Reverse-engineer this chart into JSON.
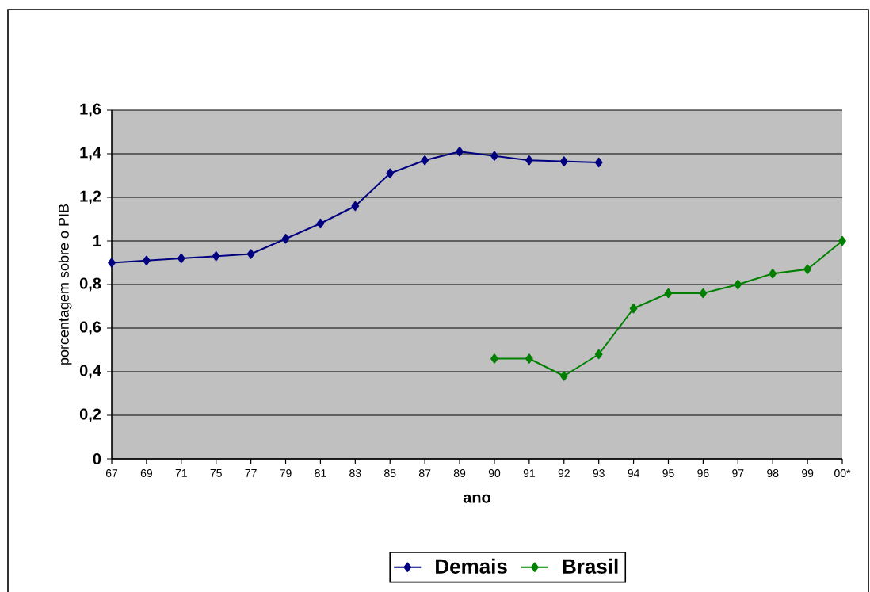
{
  "chart_data": {
    "type": "line",
    "xlabel": "ano",
    "ylabel": "porcentagem sobre o PIB",
    "categories": [
      "67",
      "69",
      "71",
      "75",
      "77",
      "79",
      "81",
      "83",
      "85",
      "87",
      "89",
      "90",
      "91",
      "92",
      "93",
      "94",
      "95",
      "96",
      "97",
      "98",
      "99",
      "00*"
    ],
    "series": [
      {
        "name": "Demais",
        "color": "#000080",
        "values": [
          0.9,
          0.91,
          0.92,
          0.93,
          0.94,
          1.01,
          1.08,
          1.16,
          1.31,
          1.37,
          1.41,
          1.39,
          1.37,
          1.365,
          1.36,
          null,
          null,
          null,
          null,
          null,
          null,
          null
        ]
      },
      {
        "name": "Brasil",
        "color": "#008000",
        "values": [
          null,
          null,
          null,
          null,
          null,
          null,
          null,
          null,
          null,
          null,
          null,
          0.46,
          0.46,
          0.38,
          0.48,
          0.69,
          0.76,
          0.76,
          0.8,
          0.85,
          0.87,
          1.0
        ]
      }
    ],
    "ylim": [
      0,
      1.6
    ],
    "yticks": [
      0,
      {
        "value": 0.2,
        "label": "0,2"
      },
      {
        "value": 0.4,
        "label": "0,4"
      },
      {
        "value": 0.6,
        "label": "0,6"
      },
      {
        "value": 0.8,
        "label": "0,8"
      },
      1,
      {
        "value": 1.2,
        "label": "1,2"
      },
      {
        "value": 1.4,
        "label": "1,4"
      },
      {
        "value": 1.6,
        "label": "1,6"
      }
    ],
    "grid": "y",
    "legend": "bottom",
    "marker": "diamond",
    "line_style": "solid"
  }
}
